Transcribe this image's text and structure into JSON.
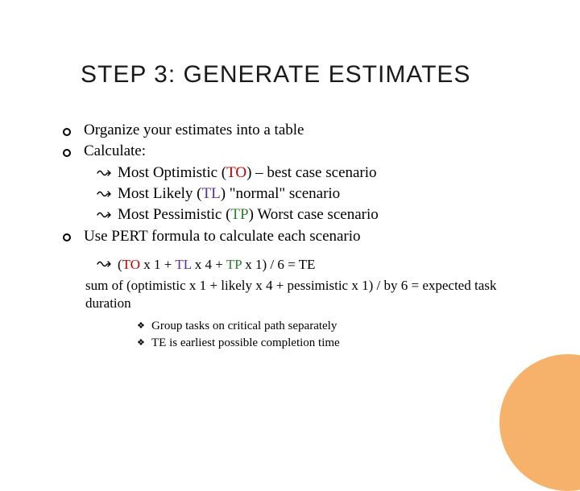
{
  "title": "STEP 3: GENERATE ESTIMATES",
  "bullets": {
    "b1": "Organize your estimates into a table",
    "b2": "Calculate:",
    "b2a_pre": "Most Optimistic (",
    "b2a_code": "TO",
    "b2a_post": ") – best case scenario",
    "b2b_pre": "Most Likely (",
    "b2b_code": "TL",
    "b2b_post": ") \"normal\" scenario",
    "b2c_pre": "Most Pessimistic (",
    "b2c_code": "TP",
    "b2c_post": ") Worst case scenario",
    "b3": "Use PERT formula to calculate each scenario"
  },
  "formula": {
    "open": "(",
    "to": "TO",
    "seg1": "  x 1   +  ",
    "tl": "TL",
    "seg2": "  x 4  + ",
    "tp": "TP",
    "seg3": "   x 1)  / 6   = TE"
  },
  "sum": "sum of (optimistic x 1 + likely x 4 + pessimistic x 1) / by 6 = expected task duration",
  "sub": {
    "s1": "Group tasks on critical path separately",
    "s2": "TE is earliest possible completion time"
  },
  "colors": {
    "accent_circle": "#f6b26b",
    "to": "#c00000",
    "tl": "#5b2d8e",
    "tp": "#2e7d32"
  }
}
